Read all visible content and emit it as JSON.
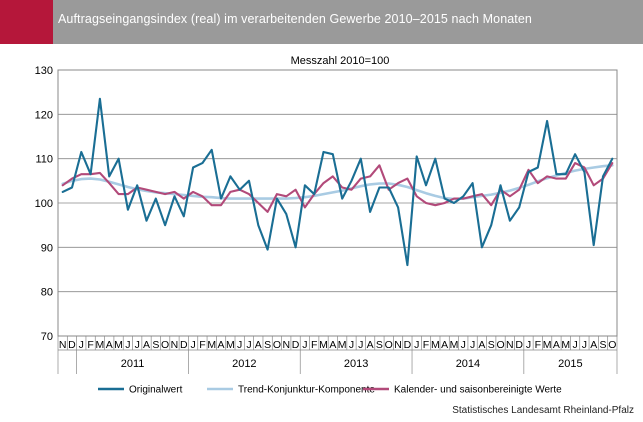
{
  "header": {
    "title": "Auftragseingangsindex (real) im verarbeitenden Gewerbe 2010–2015 nach Monaten"
  },
  "source": "Statistisches Landesamt Rheinland-Pfalz",
  "colors": {
    "header_bg": "#9a9a9a",
    "accent": "#b5173a",
    "original": "#1a6e94",
    "trend": "#a9cbe3",
    "adjusted": "#b24a7a"
  },
  "chart_data": {
    "type": "line",
    "title": "Messzahl 2010=100",
    "ylim": [
      70,
      130
    ],
    "yticks": [
      70,
      80,
      90,
      100,
      110,
      120,
      130
    ],
    "month_labels": [
      "N",
      "D",
      "J",
      "F",
      "M",
      "A",
      "M",
      "J",
      "J",
      "A",
      "S",
      "O",
      "N",
      "D",
      "J",
      "F",
      "M",
      "A",
      "M",
      "J",
      "J",
      "A",
      "S",
      "O",
      "N",
      "D",
      "J",
      "F",
      "M",
      "A",
      "M",
      "J",
      "J",
      "A",
      "S",
      "O",
      "N",
      "D",
      "J",
      "F",
      "M",
      "A",
      "M",
      "J",
      "J",
      "A",
      "S",
      "O",
      "N",
      "D",
      "J",
      "F",
      "M",
      "A",
      "M",
      "J",
      "J",
      "A",
      "S",
      "O"
    ],
    "years": [
      {
        "label": "2011",
        "start": 2,
        "end": 13
      },
      {
        "label": "2012",
        "start": 14,
        "end": 25
      },
      {
        "label": "2013",
        "start": 26,
        "end": 37
      },
      {
        "label": "2014",
        "start": 38,
        "end": 49
      },
      {
        "label": "2015",
        "start": 50,
        "end": 59
      }
    ],
    "series": [
      {
        "name": "Originalwert",
        "key": "original",
        "values": [
          102.5,
          103.5,
          111.5,
          106.5,
          123.5,
          106,
          110,
          98.5,
          104,
          96,
          101,
          95,
          101.5,
          97,
          108,
          109,
          112,
          101,
          106,
          103,
          105,
          95,
          89.5,
          101,
          97.5,
          90,
          104,
          102,
          111.5,
          111,
          101,
          105,
          110,
          98,
          103.5,
          103.5,
          99,
          86,
          110.5,
          104,
          110,
          101,
          100,
          101.5,
          104.5,
          90,
          95,
          104,
          96,
          99,
          107,
          108,
          118.5,
          106.5,
          106.5,
          111,
          107,
          90.5,
          106,
          110
        ]
      },
      {
        "name": "Trend-Konjunktur-Komponente",
        "key": "trend",
        "values": [
          104.3,
          105.0,
          105.4,
          105.5,
          105.3,
          104.8,
          104.2,
          103.6,
          103.1,
          102.7,
          102.4,
          102.2,
          102.0,
          101.8,
          101.6,
          101.4,
          101.3,
          101.1,
          101.0,
          101.0,
          101.0,
          101.0,
          101.0,
          101.0,
          101.0,
          101.1,
          101.3,
          101.6,
          102.0,
          102.4,
          102.8,
          103.3,
          103.8,
          104.2,
          104.4,
          104.4,
          104.1,
          103.6,
          102.9,
          102.2,
          101.6,
          101.1,
          100.9,
          101.0,
          101.3,
          101.6,
          101.9,
          102.3,
          102.8,
          103.4,
          104.1,
          104.9,
          105.6,
          106.2,
          106.8,
          107.3,
          107.7,
          108.0,
          108.3,
          108.5
        ]
      },
      {
        "name": "Kalender- und saisonbereinigte Werte",
        "key": "adjusted",
        "values": [
          104.0,
          105.5,
          106.5,
          106.5,
          106.8,
          104.5,
          102.0,
          102.0,
          103.5,
          103.0,
          102.5,
          102.0,
          102.5,
          101.0,
          102.5,
          101.5,
          99.5,
          99.5,
          102.5,
          103.0,
          102.0,
          100.0,
          98.0,
          102.0,
          101.5,
          103.0,
          99.0,
          102.0,
          104.5,
          106.0,
          103.5,
          103.0,
          105.5,
          106.0,
          108.5,
          103.0,
          104.5,
          105.5,
          101.5,
          100.0,
          99.5,
          100.0,
          101.0,
          101.0,
          101.5,
          102.0,
          99.5,
          103.0,
          101.5,
          103.0,
          107.5,
          104.5,
          106.0,
          105.5,
          105.5,
          109.0,
          108.0,
          104.0,
          105.5,
          109.0
        ]
      }
    ],
    "legend": [
      {
        "label": "Originalwert",
        "key": "original"
      },
      {
        "label": "Trend-Konjunktur-Komponente",
        "key": "trend"
      },
      {
        "label": "Kalender- und saisonbereinigte Werte",
        "key": "adjusted"
      }
    ]
  }
}
